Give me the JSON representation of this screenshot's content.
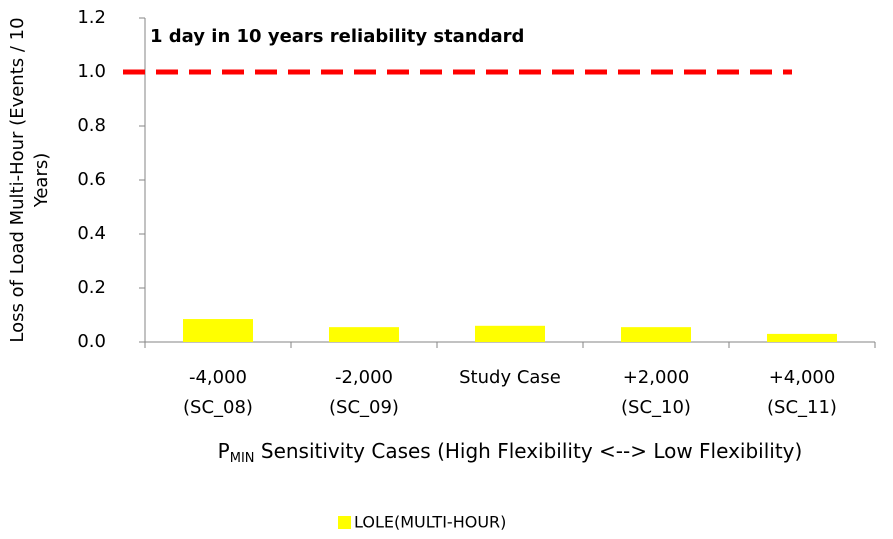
{
  "chart_data": {
    "type": "bar",
    "ylabel": [
      "Loss of Load Multi-Hour (Events / 10",
      "Years)"
    ],
    "xlabel": {
      "main": "P",
      "sub": "MIN",
      "rest": " Sensitivity Cases (High Flexibility <--> Low Flexibility)"
    },
    "categories": [
      [
        "-4,000",
        "(SC_08)"
      ],
      [
        "-2,000",
        "(SC_09)"
      ],
      [
        "Study Case"
      ],
      [
        "+2,000",
        "(SC_10)"
      ],
      [
        "+4,000",
        "(SC_11)"
      ]
    ],
    "series": [
      {
        "name": "LOLE(MULTI-HOUR)",
        "color": "#ffff00",
        "values": [
          0.085,
          0.055,
          0.06,
          0.055,
          0.03
        ]
      }
    ],
    "reference_line": {
      "value": 1.0,
      "label": "1 day in 10 years reliability standard",
      "color": "#ff0000"
    },
    "ylim": [
      0,
      1.2
    ],
    "yticks": [
      {
        "value": 0,
        "label": "0.0"
      },
      0.2,
      0.4,
      0.6,
      0.8,
      {
        "value": 1,
        "label": "1.0"
      },
      1.2
    ],
    "legend": "bottom"
  }
}
